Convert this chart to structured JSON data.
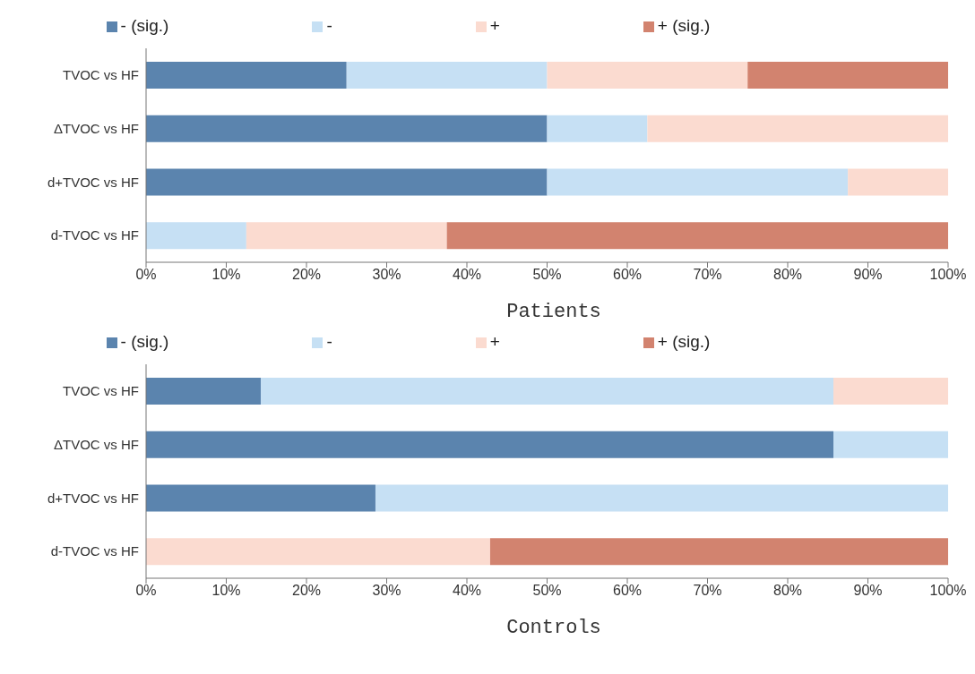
{
  "chart_data": [
    {
      "type": "bar",
      "orientation": "horizontal",
      "stacked": true,
      "xlabel": "Patients",
      "legend": "top",
      "categories": [
        "TVOC vs HF",
        "ΔTVOC vs HF",
        "d+TVOC vs HF",
        "d-TVOC vs HF"
      ],
      "xlim": [
        0,
        100
      ],
      "xticks": [
        {
          "value": 0,
          "label": "0%"
        },
        {
          "value": 10,
          "label": "10%"
        },
        {
          "value": 20,
          "label": "20%"
        },
        {
          "value": 30,
          "label": "30%"
        },
        {
          "value": 40,
          "label": "40%"
        },
        {
          "value": 50,
          "label": "50%"
        },
        {
          "value": 60,
          "label": "60%"
        },
        {
          "value": 70,
          "label": "70%"
        },
        {
          "value": 80,
          "label": "80%"
        },
        {
          "value": 90,
          "label": "90%"
        },
        {
          "value": 100,
          "label": "100%"
        }
      ],
      "series": [
        {
          "name": "- (sig.)",
          "color": "#5b84ae",
          "values": [
            25,
            50,
            50,
            0
          ]
        },
        {
          "name": "-",
          "color": "#c6e0f4",
          "values": [
            25,
            12.5,
            37.5,
            12.5
          ]
        },
        {
          "name": "+",
          "color": "#fbdbd0",
          "values": [
            25,
            37.5,
            12.5,
            25
          ]
        },
        {
          "name": "+ (sig.)",
          "color": "#d2836f",
          "values": [
            25,
            0,
            0,
            62.5
          ]
        }
      ]
    },
    {
      "type": "bar",
      "orientation": "horizontal",
      "stacked": true,
      "xlabel": "Controls",
      "legend": "top",
      "categories": [
        "TVOC vs HF",
        "ΔTVOC vs HF",
        "d+TVOC vs HF",
        "d-TVOC vs HF"
      ],
      "xlim": [
        0,
        100
      ],
      "xticks": [
        {
          "value": 0,
          "label": "0%"
        },
        {
          "value": 10,
          "label": "10%"
        },
        {
          "value": 20,
          "label": "20%"
        },
        {
          "value": 30,
          "label": "30%"
        },
        {
          "value": 40,
          "label": "40%"
        },
        {
          "value": 50,
          "label": "50%"
        },
        {
          "value": 60,
          "label": "60%"
        },
        {
          "value": 70,
          "label": "70%"
        },
        {
          "value": 80,
          "label": "80%"
        },
        {
          "value": 90,
          "label": "90%"
        },
        {
          "value": 100,
          "label": "100%"
        }
      ],
      "series": [
        {
          "name": "- (sig.)",
          "color": "#5b84ae",
          "values": [
            14.3,
            85.7,
            28.6,
            0
          ]
        },
        {
          "name": "-",
          "color": "#c6e0f4",
          "values": [
            71.4,
            14.3,
            71.4,
            0
          ]
        },
        {
          "name": "+",
          "color": "#fbdbd0",
          "values": [
            14.3,
            0,
            0,
            42.9
          ]
        },
        {
          "name": "+ (sig.)",
          "color": "#d2836f",
          "values": [
            0,
            0,
            0,
            57.1
          ]
        }
      ]
    }
  ]
}
